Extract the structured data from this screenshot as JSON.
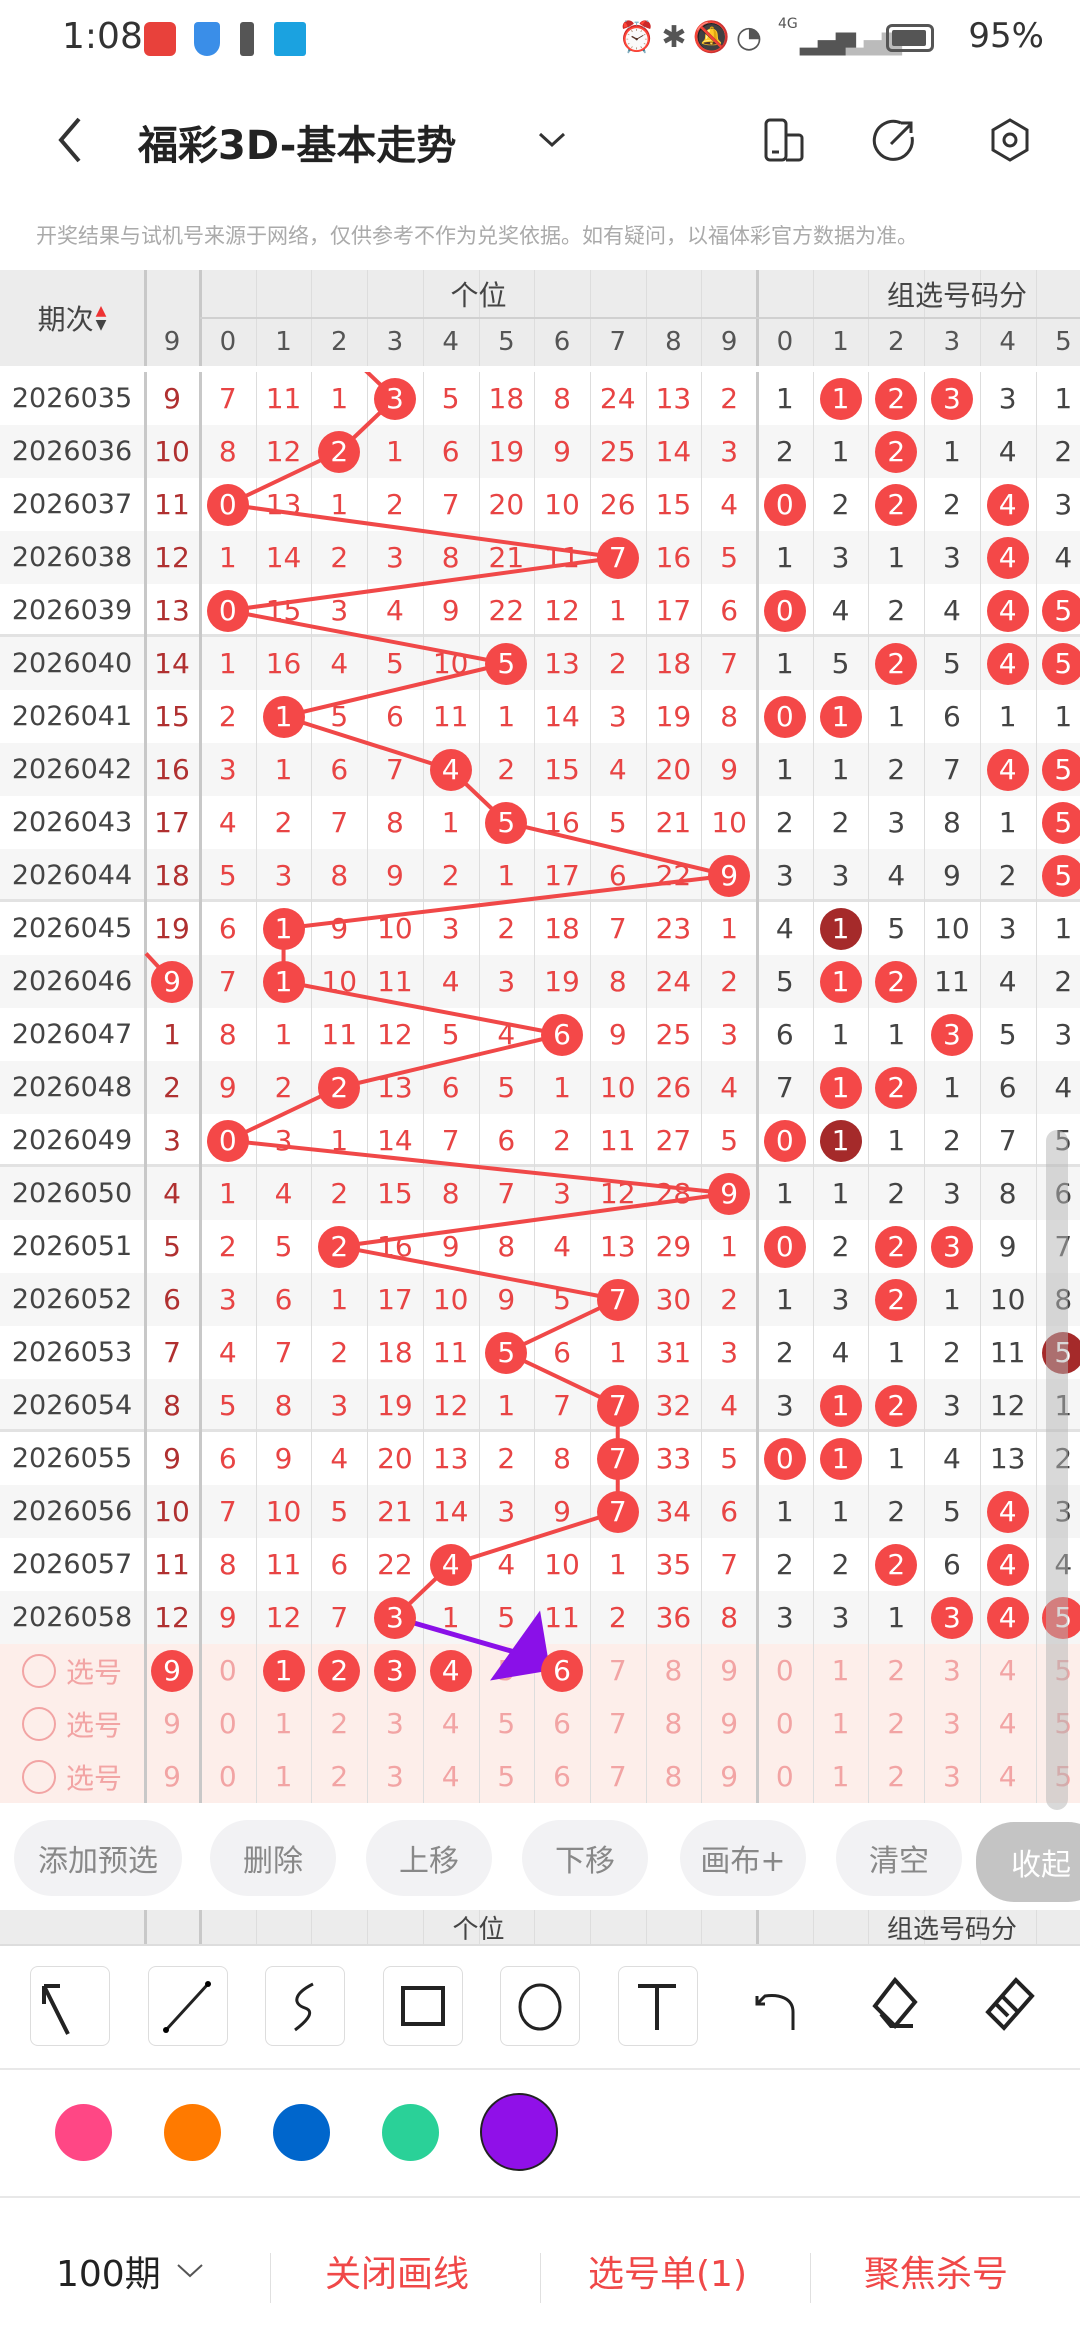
{
  "status_bar": {
    "time": "1:08",
    "battery": "95%",
    "network": "4G",
    "app_icons": [
      "huawei-store-icon",
      "shield-icon",
      "alert-icon",
      "mai-app-icon"
    ],
    "system_icons": [
      "alarm-icon",
      "bluetooth-icon",
      "mute-icon",
      "wifi-icon",
      "signal-icon",
      "signal-icon-2",
      "battery-icon"
    ]
  },
  "header": {
    "title": "福彩3D-基本走势",
    "back_icon": "chevron-left-icon",
    "dropdown_icon": "chevron-down-icon",
    "actions": [
      "layout-toggle-icon",
      "share-icon",
      "settings-icon"
    ]
  },
  "disclaimer": "开奖结果与试机号来源于网络，仅供参考不作为兑奖依据。如有疑问，以福体彩官方数据为准。",
  "table": {
    "period_header": "期次",
    "sort_icon": "sort-icon",
    "ones_header": "个位",
    "group_header": "组选号码分",
    "prev_col_header": "9",
    "ones_digits": [
      "0",
      "1",
      "2",
      "3",
      "4",
      "5",
      "6",
      "7",
      "8",
      "9"
    ],
    "group_digits": [
      "0",
      "1",
      "2",
      "3",
      "4",
      "5"
    ],
    "colors": {
      "ball": "#f44848",
      "ball_dark": "#a52a2a",
      "line": "#f04848",
      "arrow": "#8a10e8"
    },
    "rows": [
      {
        "period": "2026035",
        "c9": "9",
        "ones": [
          "7",
          "11",
          "1",
          "3",
          "5",
          "18",
          "8",
          "24",
          "13",
          "2"
        ],
        "hit": 3,
        "group": [
          "1",
          "1",
          "2",
          "3",
          "3",
          "1"
        ],
        "ghits": [
          1,
          2,
          3
        ],
        "gdark": []
      },
      {
        "period": "2026036",
        "c9": "10",
        "ones": [
          "8",
          "12",
          "2",
          "1",
          "6",
          "19",
          "9",
          "25",
          "14",
          "3"
        ],
        "hit": 2,
        "group": [
          "2",
          "1",
          "2",
          "1",
          "4",
          "2"
        ],
        "ghits": [
          2
        ],
        "gdark": []
      },
      {
        "period": "2026037",
        "c9": "11",
        "ones": [
          "0",
          "13",
          "1",
          "2",
          "7",
          "20",
          "10",
          "26",
          "15",
          "4"
        ],
        "hit": 0,
        "group": [
          "0",
          "2",
          "2",
          "2",
          "4",
          "3"
        ],
        "ghits": [
          0,
          2,
          4
        ],
        "gdark": []
      },
      {
        "period": "2026038",
        "c9": "12",
        "ones": [
          "1",
          "14",
          "2",
          "3",
          "8",
          "21",
          "11",
          "7",
          "16",
          "5"
        ],
        "hit": 7,
        "group": [
          "1",
          "3",
          "1",
          "3",
          "4",
          "4"
        ],
        "ghits": [
          4
        ],
        "gdark": []
      },
      {
        "period": "2026039",
        "c9": "13",
        "ones": [
          "0",
          "15",
          "3",
          "4",
          "9",
          "22",
          "12",
          "1",
          "17",
          "6"
        ],
        "hit": 0,
        "group": [
          "0",
          "4",
          "2",
          "4",
          "4",
          "5"
        ],
        "ghits": [
          0,
          4,
          5
        ],
        "gdark": []
      },
      {
        "period": "2026040",
        "c9": "14",
        "ones": [
          "1",
          "16",
          "4",
          "5",
          "10",
          "5",
          "13",
          "2",
          "18",
          "7"
        ],
        "hit": 5,
        "group": [
          "1",
          "5",
          "2",
          "5",
          "4",
          "5"
        ],
        "ghits": [
          2,
          4,
          5
        ],
        "gdark": []
      },
      {
        "period": "2026041",
        "c9": "15",
        "ones": [
          "2",
          "1",
          "5",
          "6",
          "11",
          "1",
          "14",
          "3",
          "19",
          "8"
        ],
        "hit": 1,
        "group": [
          "0",
          "1",
          "1",
          "6",
          "1",
          "1"
        ],
        "ghits": [
          0,
          1
        ],
        "gdark": []
      },
      {
        "period": "2026042",
        "c9": "16",
        "ones": [
          "3",
          "1",
          "6",
          "7",
          "4",
          "2",
          "15",
          "4",
          "20",
          "9"
        ],
        "hit": 4,
        "group": [
          "1",
          "1",
          "2",
          "7",
          "4",
          "5"
        ],
        "ghits": [
          4,
          5
        ],
        "gdark": []
      },
      {
        "period": "2026043",
        "c9": "17",
        "ones": [
          "4",
          "2",
          "7",
          "8",
          "1",
          "5",
          "16",
          "5",
          "21",
          "10"
        ],
        "hit": 5,
        "group": [
          "2",
          "2",
          "3",
          "8",
          "1",
          "5"
        ],
        "ghits": [
          5
        ],
        "gdark": []
      },
      {
        "period": "2026044",
        "c9": "18",
        "ones": [
          "5",
          "3",
          "8",
          "9",
          "2",
          "1",
          "17",
          "6",
          "22",
          "9"
        ],
        "hit": 9,
        "group": [
          "3",
          "3",
          "4",
          "9",
          "2",
          "5"
        ],
        "ghits": [
          5
        ],
        "gdark": []
      },
      {
        "period": "2026045",
        "c9": "19",
        "ones": [
          "6",
          "1",
          "9",
          "10",
          "3",
          "2",
          "18",
          "7",
          "23",
          "1"
        ],
        "hit": 1,
        "group": [
          "4",
          "1",
          "5",
          "10",
          "3",
          "1"
        ],
        "ghits": [],
        "gdark": [
          1
        ]
      },
      {
        "period": "2026046",
        "c9": "9",
        "c9hit": true,
        "ones": [
          "7",
          "1",
          "10",
          "11",
          "4",
          "3",
          "19",
          "8",
          "24",
          "2"
        ],
        "hit": 1,
        "group": [
          "5",
          "1",
          "2",
          "11",
          "4",
          "2"
        ],
        "ghits": [
          1,
          2
        ],
        "gdark": []
      },
      {
        "period": "2026047",
        "c9": "1",
        "ones": [
          "8",
          "1",
          "11",
          "12",
          "5",
          "4",
          "6",
          "9",
          "25",
          "3"
        ],
        "hit": 6,
        "group": [
          "6",
          "1",
          "1",
          "3",
          "5",
          "3"
        ],
        "ghits": [
          3
        ],
        "gdark": []
      },
      {
        "period": "2026048",
        "c9": "2",
        "ones": [
          "9",
          "2",
          "2",
          "13",
          "6",
          "5",
          "1",
          "10",
          "26",
          "4"
        ],
        "hit": 2,
        "group": [
          "7",
          "1",
          "2",
          "1",
          "6",
          "4"
        ],
        "ghits": [
          1,
          2
        ],
        "gdark": []
      },
      {
        "period": "2026049",
        "c9": "3",
        "ones": [
          "0",
          "3",
          "1",
          "14",
          "7",
          "6",
          "2",
          "11",
          "27",
          "5"
        ],
        "hit": 0,
        "group": [
          "0",
          "1",
          "1",
          "2",
          "7",
          "5"
        ],
        "ghits": [
          0
        ],
        "gdark": [
          1
        ]
      },
      {
        "period": "2026050",
        "c9": "4",
        "ones": [
          "1",
          "4",
          "2",
          "15",
          "8",
          "7",
          "3",
          "12",
          "28",
          "9"
        ],
        "hit": 9,
        "group": [
          "1",
          "1",
          "2",
          "3",
          "8",
          "6"
        ],
        "ghits": [],
        "gdark": []
      },
      {
        "period": "2026051",
        "c9": "5",
        "ones": [
          "2",
          "5",
          "2",
          "16",
          "9",
          "8",
          "4",
          "13",
          "29",
          "1"
        ],
        "hit": 2,
        "group": [
          "0",
          "2",
          "2",
          "3",
          "9",
          "7"
        ],
        "ghits": [
          0,
          2,
          3
        ],
        "gdark": []
      },
      {
        "period": "2026052",
        "c9": "6",
        "ones": [
          "3",
          "6",
          "1",
          "17",
          "10",
          "9",
          "5",
          "7",
          "30",
          "2"
        ],
        "hit": 7,
        "group": [
          "1",
          "3",
          "2",
          "1",
          "10",
          "8"
        ],
        "ghits": [
          2
        ],
        "gdark": []
      },
      {
        "period": "2026053",
        "c9": "7",
        "ones": [
          "4",
          "7",
          "2",
          "18",
          "11",
          "5",
          "6",
          "1",
          "31",
          "3"
        ],
        "hit": 5,
        "group": [
          "2",
          "4",
          "1",
          "2",
          "11",
          "5"
        ],
        "ghits": [],
        "gdark": [
          5
        ]
      },
      {
        "period": "2026054",
        "c9": "8",
        "ones": [
          "5",
          "8",
          "3",
          "19",
          "12",
          "1",
          "7",
          "7",
          "32",
          "4"
        ],
        "hit": 7,
        "group": [
          "3",
          "1",
          "2",
          "3",
          "12",
          "1"
        ],
        "ghits": [
          1,
          2
        ],
        "gdark": []
      },
      {
        "period": "2026055",
        "c9": "9",
        "ones": [
          "6",
          "9",
          "4",
          "20",
          "13",
          "2",
          "8",
          "7",
          "33",
          "5"
        ],
        "hit": 7,
        "group": [
          "0",
          "1",
          "1",
          "4",
          "13",
          "2"
        ],
        "ghits": [
          0,
          1
        ],
        "gdark": []
      },
      {
        "period": "2026056",
        "c9": "10",
        "ones": [
          "7",
          "10",
          "5",
          "21",
          "14",
          "3",
          "9",
          "7",
          "34",
          "6"
        ],
        "hit": 7,
        "group": [
          "1",
          "1",
          "2",
          "5",
          "4",
          "3"
        ],
        "ghits": [
          4
        ],
        "gdark": []
      },
      {
        "period": "2026057",
        "c9": "11",
        "ones": [
          "8",
          "11",
          "6",
          "22",
          "4",
          "4",
          "10",
          "1",
          "35",
          "7"
        ],
        "hit": 4,
        "group": [
          "2",
          "2",
          "2",
          "6",
          "4",
          "4"
        ],
        "ghits": [
          2,
          4
        ],
        "gdark": []
      },
      {
        "period": "2026058",
        "c9": "12",
        "ones": [
          "9",
          "12",
          "7",
          "3",
          "1",
          "5",
          "11",
          "2",
          "36",
          "8"
        ],
        "hit": 3,
        "group": [
          "3",
          "3",
          "1",
          "3",
          "4",
          "5"
        ],
        "ghits": [
          3,
          4,
          5
        ],
        "gdark": []
      }
    ],
    "select_rows": [
      {
        "label": "选号",
        "c9": "9",
        "c9sel": true,
        "ones_sel": [
          1,
          2,
          3,
          4,
          6
        ],
        "group_sel": []
      },
      {
        "label": "选号",
        "c9": "9",
        "c9sel": false,
        "ones_sel": [],
        "group_sel": []
      },
      {
        "label": "选号",
        "c9": "9",
        "c9sel": false,
        "ones_sel": [],
        "group_sel": []
      }
    ]
  },
  "actions": [
    "添加预选",
    "删除",
    "上移",
    "下移",
    "画布+",
    "清空",
    "收起"
  ],
  "draw_tools": [
    "arrow-tool-icon",
    "line-tool-icon",
    "curve-tool-icon",
    "rectangle-tool-icon",
    "circle-tool-icon",
    "text-tool-icon",
    "undo-icon",
    "eraser-icon",
    "clear-brush-icon"
  ],
  "palette": {
    "colors": [
      "#ff4785",
      "#ff7a00",
      "#0066cc",
      "#2ad198",
      "#9010e8"
    ],
    "selected": 4
  },
  "bottom_bar": {
    "period_select": "100期",
    "close_drawing": "关闭画线",
    "selection_list": "选号单(1)",
    "focus_kill": "聚焦杀号"
  }
}
